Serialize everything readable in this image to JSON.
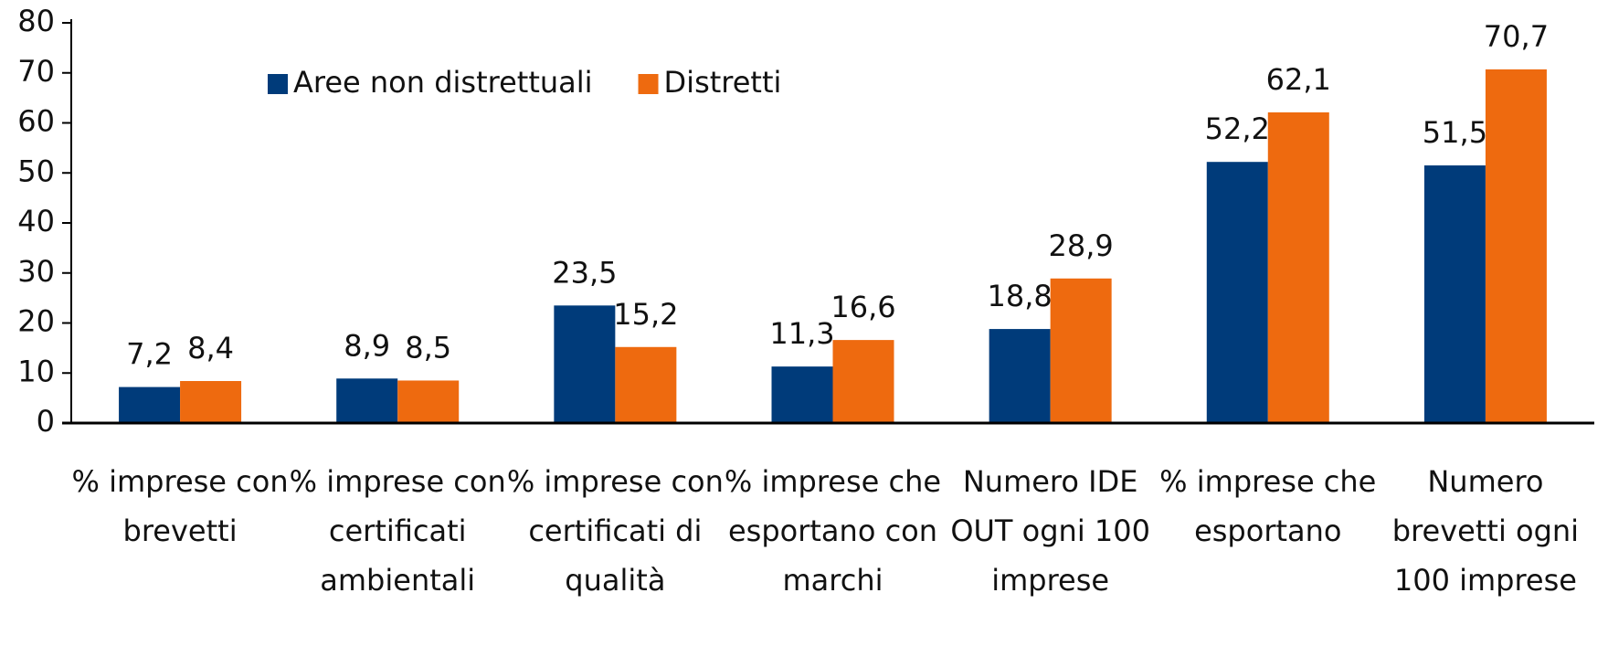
{
  "chart_data": {
    "type": "bar",
    "categories": [
      "% imprese con brevetti",
      "% imprese con certificati ambientali",
      "% imprese con certificati di qualità",
      "% imprese che esportano con marchi",
      "Numero IDE OUT ogni 100 imprese",
      "% imprese che esportano",
      "Numero brevetti ogni 100 imprese"
    ],
    "series": [
      {
        "name": "Aree non distrettuali",
        "color": "#003b7a",
        "values": [
          7.2,
          8.9,
          23.5,
          11.3,
          18.8,
          52.2,
          51.5
        ],
        "value_labels": [
          "7,2",
          "8,9",
          "23,5",
          "11,3",
          "18,8",
          "52,2",
          "51,5"
        ]
      },
      {
        "name": "Distretti",
        "color": "#ee6a0f",
        "values": [
          8.4,
          8.5,
          15.2,
          16.6,
          28.9,
          62.1,
          70.7
        ],
        "value_labels": [
          "8,4",
          "8,5",
          "15,2",
          "16,6",
          "28,9",
          "62,1",
          "70,7"
        ]
      }
    ],
    "ylim": [
      0,
      80
    ],
    "yticks": [
      0,
      10,
      20,
      30,
      40,
      50,
      60,
      70,
      80
    ],
    "grid": false,
    "legend": "top-left"
  }
}
